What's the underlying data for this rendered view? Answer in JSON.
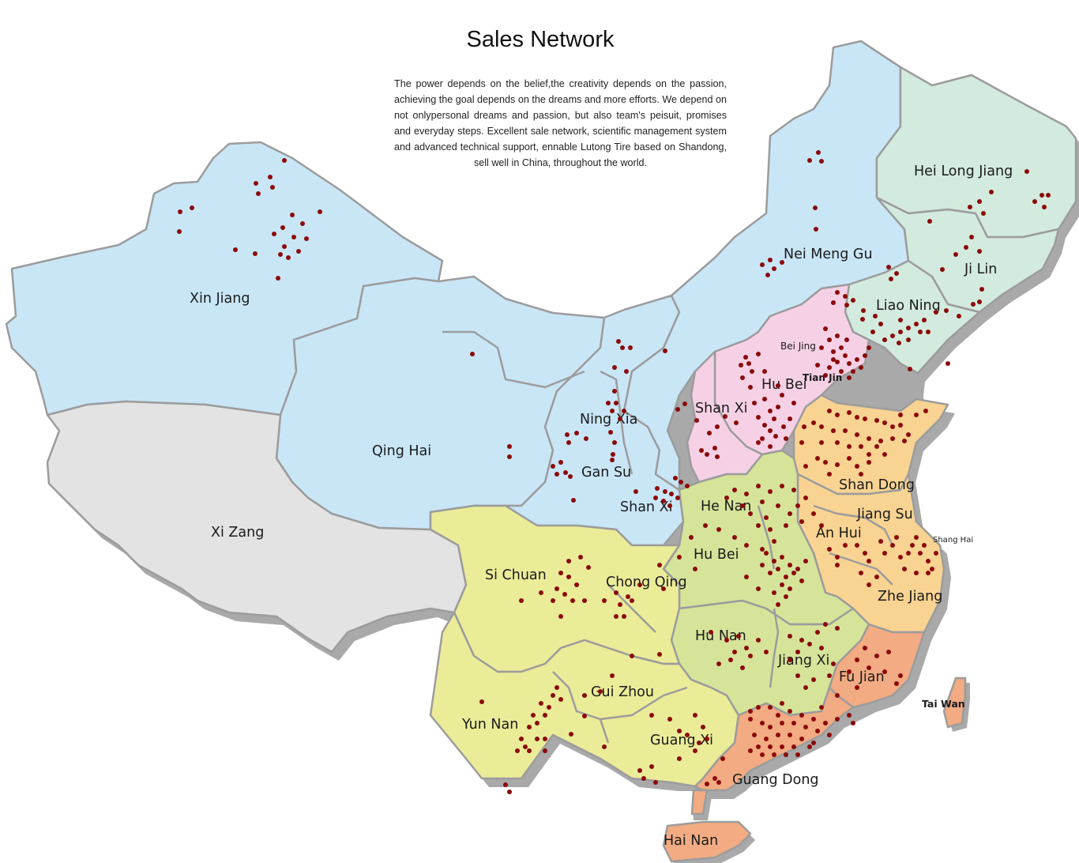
{
  "title": "Sales Network",
  "intro": "The power depends on the belief,the creativity depends on the passion, achieving the goal depends on the dreams and more efforts. We depend on not onlypersonal dreams and passion, but also team's peisuit, promises and everyday steps. Excellent sale network, scientific management system and advanced technical support, ennable Lutong Tire based on Shandong, sell well in China, throughout the world.",
  "colors": {
    "blue": "#c9e6f7",
    "grey": "#e3e3e3",
    "green_east": "#d3ebde",
    "pink": "#f6d1e6",
    "orange": "#f9d392",
    "lime": "#d6e49a",
    "yellow": "#ebec98",
    "salmon": "#f2ab82",
    "shadow": "#a9a9a9",
    "border": "#9c9c9c",
    "dot": "#8b0a0a"
  },
  "provinces": {
    "xin_jiang": "Xin Jiang",
    "xi_zang": "Xi Zang",
    "qing_hai": "Qing Hai",
    "gan_su": "Gan Su",
    "ning_xia": "Ning Xia",
    "nei_meng_gu": "Nei Meng Gu",
    "hei_long_jiang": "Hei Long Jiang",
    "ji_lin": "Ji Lin",
    "liao_ning": "Liao Ning",
    "bei_jing": "Bei Jing",
    "tian_jin": "Tian Jin",
    "hu_bei_north": "Hu Bei",
    "shan_xi_north": "Shan Xi",
    "shan_xi_south": "Shan Xi",
    "shan_dong": "Shan Dong",
    "he_nan": "He Nan",
    "jiang_su": "Jiang Su",
    "an_hui": "An Hui",
    "shang_hai": "Shang Hai",
    "hu_bei": "Hu Bei",
    "zhe_jiang": "Zhe Jiang",
    "si_chuan": "Si Chuan",
    "chong_qing": "Chong Qing",
    "hu_nan": "Hu Nan",
    "jiang_xi": "Jiang Xi",
    "fu_jian": "Fu Jian",
    "tai_wan": "Tai Wan",
    "gui_zhou": "Gui Zhou",
    "yun_nan": "Yun Nan",
    "guang_xi": "Guang Xi",
    "guang_dong": "Guang Dong",
    "hai_nan": "Hai Nan"
  }
}
